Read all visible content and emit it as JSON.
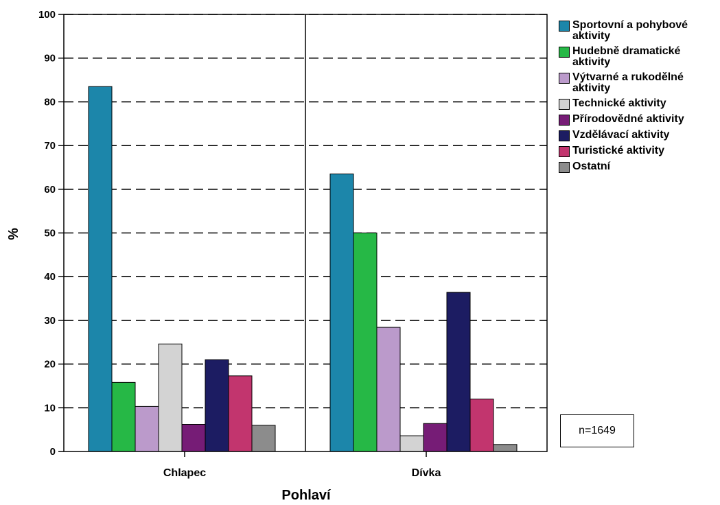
{
  "chart_data": {
    "type": "bar",
    "title": "",
    "xlabel": "Pohlaví",
    "ylabel": "%",
    "ylim": [
      0,
      100
    ],
    "yticks": [
      0,
      10,
      20,
      30,
      40,
      50,
      60,
      70,
      80,
      90,
      100
    ],
    "grid": true,
    "legend_position": "right",
    "categories": [
      "Chlapec",
      "Dívka"
    ],
    "series": [
      {
        "name": "Sportovní a pohybové aktivity",
        "color": "#1c86aa",
        "values": [
          83.5,
          63.5
        ]
      },
      {
        "name": "Hudebně dramatické aktivity",
        "color": "#26b846",
        "values": [
          15.8,
          50.0
        ]
      },
      {
        "name": "Výtvarné a rukodělné aktivity",
        "color": "#bb9acb",
        "values": [
          10.3,
          28.4
        ]
      },
      {
        "name": "Technické aktivity",
        "color": "#d3d3d3",
        "values": [
          24.6,
          3.6
        ]
      },
      {
        "name": "Přírodovědné aktivity",
        "color": "#761c76",
        "values": [
          6.2,
          6.4
        ]
      },
      {
        "name": "Vzdělávací aktivity",
        "color": "#1c1c62",
        "values": [
          21.0,
          36.4
        ]
      },
      {
        "name": "Turistické aktivity",
        "color": "#c2356e",
        "values": [
          17.3,
          12.0
        ]
      },
      {
        "name": "Ostatní",
        "color": "#8c8c8c",
        "values": [
          6.0,
          1.6
        ]
      }
    ],
    "annotation": "n=1649"
  }
}
